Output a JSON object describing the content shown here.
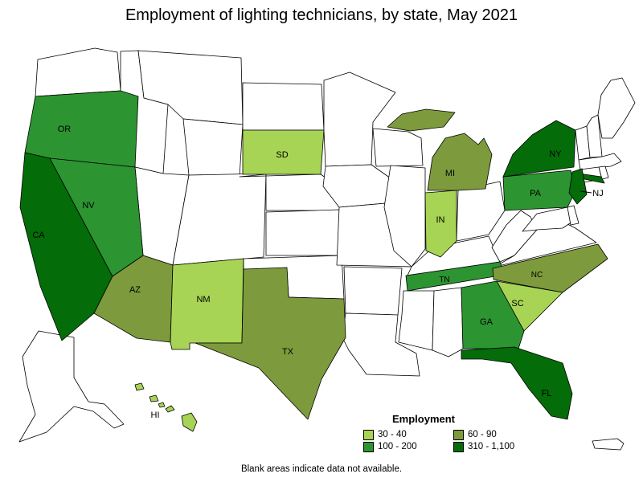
{
  "title": "Employment of lighting technicians, by state, May 2021",
  "note": "Blank areas indicate data not available.",
  "legend": {
    "title": "Employment",
    "bins": [
      {
        "label": "30 - 40",
        "color": "#A7D454"
      },
      {
        "label": "60 - 90",
        "color": "#7D9B3C"
      },
      {
        "label": "100 - 200",
        "color": "#2D9432"
      },
      {
        "label": "310 - 1,100",
        "color": "#046C08"
      }
    ]
  },
  "map": {
    "states": [
      {
        "id": "WA",
        "bin": null
      },
      {
        "id": "ID",
        "bin": null
      },
      {
        "id": "MT",
        "bin": null
      },
      {
        "id": "WY",
        "bin": null
      },
      {
        "id": "UT",
        "bin": null
      },
      {
        "id": "CO",
        "bin": null
      },
      {
        "id": "ND",
        "bin": null
      },
      {
        "id": "NE",
        "bin": null
      },
      {
        "id": "KS",
        "bin": null
      },
      {
        "id": "OK",
        "bin": null
      },
      {
        "id": "MN",
        "bin": null
      },
      {
        "id": "IA",
        "bin": null
      },
      {
        "id": "MO",
        "bin": null
      },
      {
        "id": "AR",
        "bin": null
      },
      {
        "id": "LA",
        "bin": null
      },
      {
        "id": "WI",
        "bin": null
      },
      {
        "id": "IL",
        "bin": null
      },
      {
        "id": "OH",
        "bin": null
      },
      {
        "id": "KY",
        "bin": null
      },
      {
        "id": "WV",
        "bin": null
      },
      {
        "id": "VA",
        "bin": null
      },
      {
        "id": "MD",
        "bin": null
      },
      {
        "id": "DE",
        "bin": null
      },
      {
        "id": "VT",
        "bin": null
      },
      {
        "id": "NH",
        "bin": null
      },
      {
        "id": "ME",
        "bin": null
      },
      {
        "id": "MA",
        "bin": null
      },
      {
        "id": "CT",
        "bin": null
      },
      {
        "id": "RI",
        "bin": null
      },
      {
        "id": "MS",
        "bin": null
      },
      {
        "id": "AL",
        "bin": null
      },
      {
        "id": "AK",
        "bin": null
      },
      {
        "id": "PR",
        "bin": null
      },
      {
        "id": "OR",
        "bin": 2,
        "label": "OR"
      },
      {
        "id": "CA",
        "bin": 3,
        "label": "CA"
      },
      {
        "id": "NV",
        "bin": 2,
        "label": "NV"
      },
      {
        "id": "AZ",
        "bin": 1,
        "label": "AZ"
      },
      {
        "id": "NM",
        "bin": 0,
        "label": "NM"
      },
      {
        "id": "SD",
        "bin": 0,
        "label": "SD"
      },
      {
        "id": "TX",
        "bin": 1,
        "label": "TX"
      },
      {
        "id": "MI",
        "bin": 1,
        "label": "MI"
      },
      {
        "id": "IN",
        "bin": 0,
        "label": "IN"
      },
      {
        "id": "PA",
        "bin": 2,
        "label": "PA"
      },
      {
        "id": "NY",
        "bin": 3,
        "label": "NY"
      },
      {
        "id": "NJ",
        "bin": 3,
        "label": "NJ"
      },
      {
        "id": "TN",
        "bin": 2,
        "label": "TN"
      },
      {
        "id": "NC",
        "bin": 1,
        "label": "NC"
      },
      {
        "id": "SC",
        "bin": 0,
        "label": "SC"
      },
      {
        "id": "GA",
        "bin": 2,
        "label": "GA"
      },
      {
        "id": "FL",
        "bin": 3,
        "label": "FL"
      },
      {
        "id": "HI",
        "bin": 0,
        "label": "HI"
      }
    ]
  }
}
